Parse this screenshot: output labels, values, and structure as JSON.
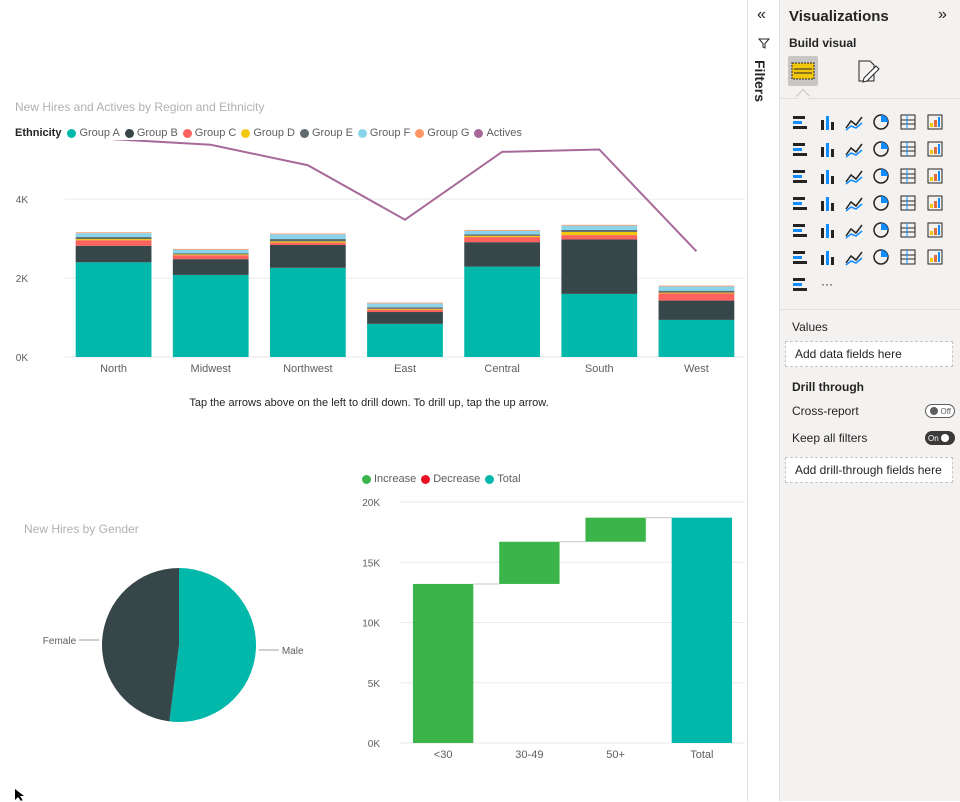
{
  "report": {
    "hint": "Tap the arrows above on the left to drill down. To drill up, tap the up arrow."
  },
  "filters": {
    "label": "Filters",
    "collapse_icon": "double-chevron-left-icon"
  },
  "visualizations": {
    "title": "Visualizations",
    "expand_icon": "double-chevron-right-icon",
    "build_visual": "Build visual",
    "more": "···",
    "values_label": "Values",
    "values_well": "Add data fields here",
    "drill_through_label": "Drill through",
    "cross_report_label": "Cross-report",
    "cross_report_toggle": "Off",
    "keep_filters_label": "Keep all filters",
    "keep_filters_toggle": "On",
    "drill_well": "Add drill-through fields here",
    "icons": [
      "stacked-bar-icon",
      "stacked-column-icon",
      "clustered-bar-icon",
      "clustered-column-icon",
      "100-stacked-bar-icon",
      "100-stacked-column-icon",
      "line-chart-icon",
      "area-chart-icon",
      "stacked-area-icon",
      "line-stacked-column-icon",
      "line-clustered-column-icon",
      "ribbon-chart-icon",
      "waterfall-icon",
      "funnel-icon",
      "scatter-icon",
      "pie-icon",
      "donut-icon",
      "treemap-icon",
      "map-icon",
      "filled-map-icon",
      "gauge-icon",
      "card-icon",
      "multi-row-card-icon",
      "kpi-icon",
      "slicer-icon",
      "table-icon",
      "matrix-icon",
      "r-visual-icon",
      "python-visual-icon",
      "key-influencers-icon",
      "decomposition-tree-icon",
      "qa-icon",
      "smart-narrative-icon",
      "paginated-report-icon",
      "azure-map-icon",
      "power-apps-icon",
      "power-automate-icon"
    ]
  },
  "chart_data": [
    {
      "type": "bar",
      "title": "New Hires and Actives by Region and Ethnicity",
      "legend_title": "Ethnicity",
      "legend_position": "top-left",
      "categories": [
        "North",
        "Midwest",
        "Northwest",
        "East",
        "Central",
        "South",
        "West"
      ],
      "ylim": [
        0,
        5500
      ],
      "yticks": [
        {
          "v": 0,
          "label": "0K"
        },
        {
          "v": 2000,
          "label": "2K"
        },
        {
          "v": 4000,
          "label": "4K"
        }
      ],
      "grid": true,
      "series": [
        {
          "name": "Group A",
          "color": "#01b8aa",
          "values": [
            2400,
            2080,
            2260,
            840,
            2290,
            1600,
            940
          ]
        },
        {
          "name": "Group B",
          "color": "#374649",
          "values": [
            420,
            400,
            580,
            300,
            620,
            1380,
            490
          ]
        },
        {
          "name": "Group C",
          "color": "#fd625e",
          "values": [
            140,
            100,
            60,
            60,
            130,
            110,
            180
          ]
        },
        {
          "name": "Group D",
          "color": "#f2c80f",
          "values": [
            30,
            20,
            30,
            20,
            30,
            80,
            20
          ]
        },
        {
          "name": "Group E",
          "color": "#5f6b6d",
          "values": [
            50,
            30,
            60,
            40,
            40,
            50,
            50
          ]
        },
        {
          "name": "Group F",
          "color": "#8ad4eb",
          "values": [
            100,
            90,
            120,
            100,
            90,
            110,
            110
          ]
        },
        {
          "name": "Group G",
          "color": "#fe9666",
          "values": [
            20,
            20,
            20,
            20,
            20,
            20,
            20
          ]
        }
      ],
      "line": {
        "name": "Actives",
        "color": "#a66999",
        "values": [
          5520,
          5380,
          4860,
          3480,
          5200,
          5260,
          2680
        ]
      }
    },
    {
      "type": "pie",
      "title": "New Hires by Gender",
      "slices": [
        {
          "label": "Male",
          "value": 52,
          "color": "#01b8aa"
        },
        {
          "label": "Female",
          "value": 48,
          "color": "#374649"
        }
      ]
    },
    {
      "type": "bar",
      "subtype": "waterfall",
      "legend_position": "top-left",
      "legend": [
        {
          "name": "Increase",
          "color": "#3bb44a"
        },
        {
          "name": "Decrease",
          "color": "#e81123"
        },
        {
          "name": "Total",
          "color": "#01b8aa"
        }
      ],
      "categories": [
        "<30",
        "30-49",
        "50+",
        "Total"
      ],
      "ylim": [
        0,
        20000
      ],
      "yticks": [
        {
          "v": 0,
          "label": "0K"
        },
        {
          "v": 5000,
          "label": "5K"
        },
        {
          "v": 10000,
          "label": "10K"
        },
        {
          "v": 15000,
          "label": "15K"
        },
        {
          "v": 20000,
          "label": "20K"
        }
      ],
      "grid": true,
      "steps": [
        {
          "label": "<30",
          "value": 13200,
          "kind": "increase"
        },
        {
          "label": "30-49",
          "value": 3500,
          "kind": "increase"
        },
        {
          "label": "50+",
          "value": 2000,
          "kind": "increase"
        },
        {
          "label": "Total",
          "value": 18700,
          "kind": "total"
        }
      ]
    }
  ]
}
